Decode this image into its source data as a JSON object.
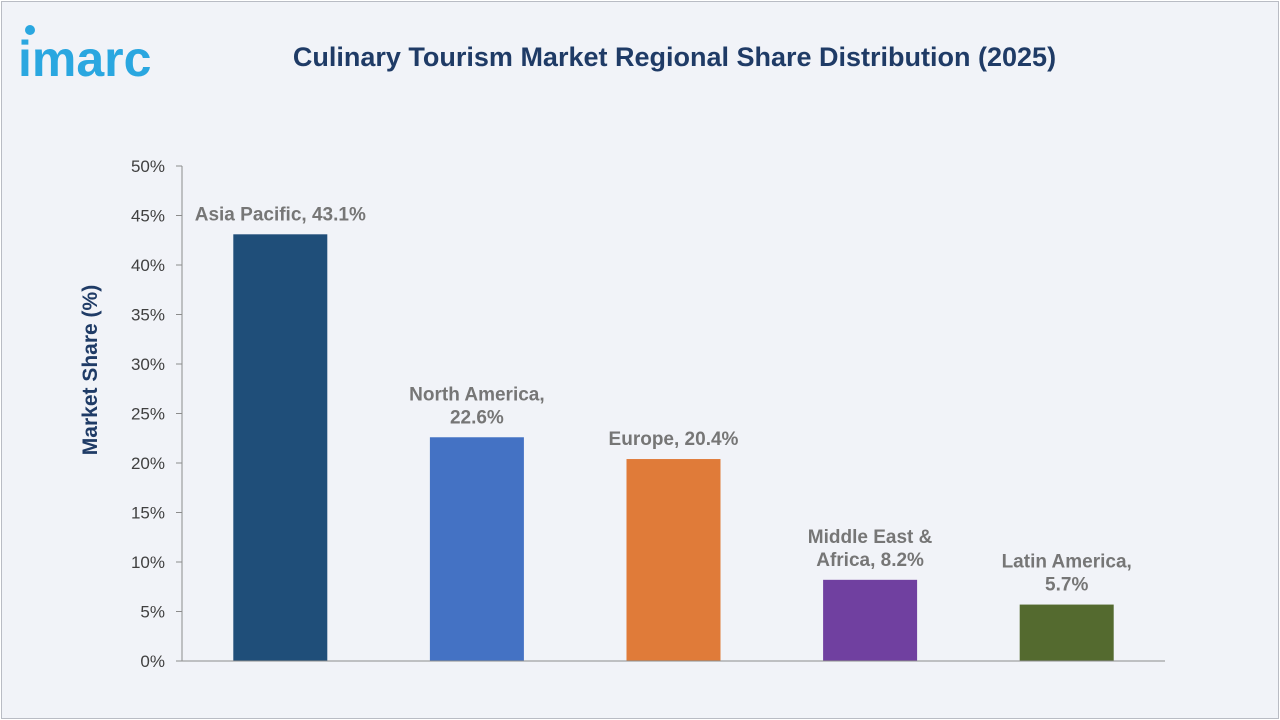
{
  "logo": {
    "text": "imarc",
    "color": "#2aa7e0"
  },
  "chart_data": {
    "type": "bar",
    "title": "Culinary Tourism Market Regional Share Distribution (2025)",
    "ylabel": "Market Share (%)",
    "xlabel": "",
    "ylim": [
      0,
      50
    ],
    "ytick_step": 5,
    "ytick_suffix": "%",
    "grid": false,
    "legend": "none",
    "categories": [
      "Asia Pacific",
      "North America",
      "Europe",
      "Middle East & Africa",
      "Latin America"
    ],
    "values": [
      43.1,
      22.6,
      20.4,
      8.2,
      5.7
    ],
    "data_labels": [
      [
        "Asia Pacific, 43.1%"
      ],
      [
        "North America,",
        "22.6%"
      ],
      [
        "Europe, 20.4%"
      ],
      [
        "Middle East &",
        "Africa, 8.2%"
      ],
      [
        "Latin America,",
        "5.7%"
      ]
    ],
    "colors": [
      "#1f4e79",
      "#4472c4",
      "#e07b39",
      "#7040a0",
      "#546a2f"
    ]
  }
}
